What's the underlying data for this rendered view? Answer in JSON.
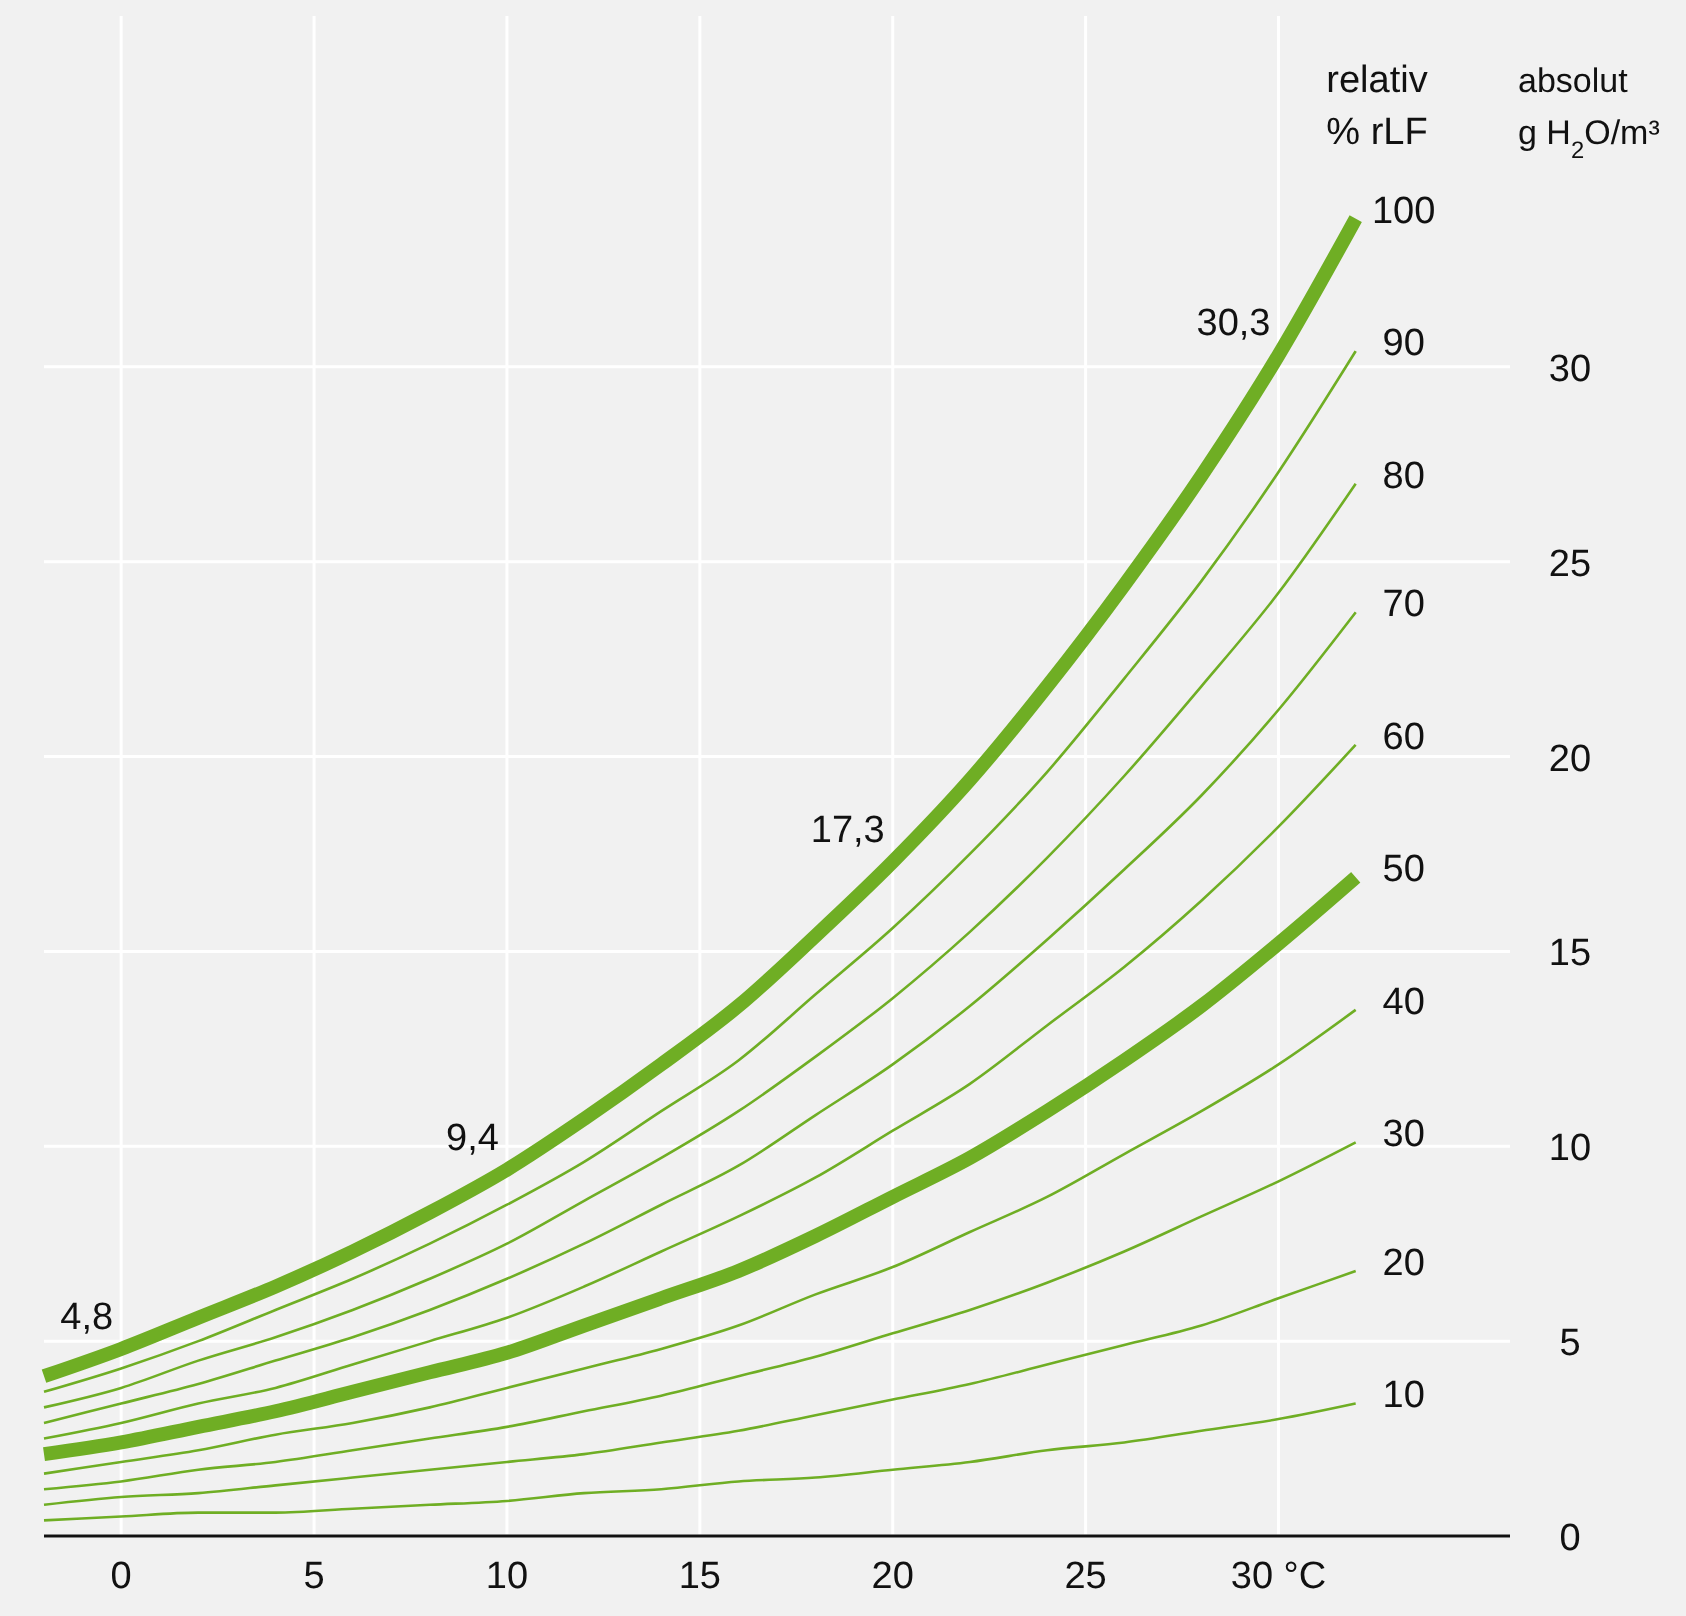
{
  "chart_data": {
    "type": "line",
    "ylabel": "absolut\ng H$_{2}$O/m³",
    "annotations": [
      "relativ\n% rLF",
      {
        "text": "4,8",
        "x": 0,
        "y": 4.8
      },
      {
        "text": "9,4",
        "x": 10,
        "y": 9.4
      },
      {
        "text": "17,3",
        "x": 20,
        "y": 17.3
      },
      {
        "text": "30,3",
        "x": 30,
        "y": 30.3
      }
    ],
    "x": [
      -2,
      0,
      2,
      4,
      6,
      8,
      10,
      12,
      14,
      16,
      18,
      20,
      22,
      24,
      26,
      28,
      30,
      32
    ],
    "series": [
      {
        "name": "100",
        "color": "#6fae24",
        "values": [
          4.1,
          4.8,
          5.6,
          6.4,
          7.3,
          8.3,
          9.4,
          10.7,
          12.1,
          13.6,
          15.4,
          17.3,
          19.4,
          21.8,
          24.4,
          27.2,
          30.3,
          33.8
        ]
      },
      {
        "name": "90",
        "color": "#6fae24",
        "values": [
          3.7,
          4.3,
          5.0,
          5.8,
          6.6,
          7.5,
          8.5,
          9.6,
          10.9,
          12.2,
          13.9,
          15.6,
          17.5,
          19.6,
          22.0,
          24.5,
          27.3,
          30.4
        ]
      },
      {
        "name": "80",
        "color": "#6fae24",
        "values": [
          3.3,
          3.8,
          4.5,
          5.1,
          5.8,
          6.6,
          7.5,
          8.6,
          9.7,
          10.9,
          12.3,
          13.8,
          15.5,
          17.4,
          19.5,
          21.8,
          24.2,
          27.0
        ]
      },
      {
        "name": "70",
        "color": "#6fae24",
        "values": [
          2.9,
          3.4,
          3.9,
          4.5,
          5.1,
          5.8,
          6.6,
          7.5,
          8.5,
          9.5,
          10.8,
          12.1,
          13.6,
          15.3,
          17.1,
          19.0,
          21.2,
          23.7
        ]
      },
      {
        "name": "60",
        "color": "#6fae24",
        "values": [
          2.5,
          2.9,
          3.4,
          3.8,
          4.4,
          5.0,
          5.6,
          6.4,
          7.3,
          8.2,
          9.2,
          10.4,
          11.6,
          13.1,
          14.6,
          16.3,
          18.2,
          20.3
        ]
      },
      {
        "name": "50",
        "color": "#6fae24",
        "values": [
          2.1,
          2.4,
          2.8,
          3.2,
          3.7,
          4.2,
          4.7,
          5.4,
          6.1,
          6.8,
          7.7,
          8.7,
          9.7,
          10.9,
          12.2,
          13.6,
          15.2,
          16.9
        ]
      },
      {
        "name": "40",
        "color": "#6fae24",
        "values": [
          1.6,
          1.9,
          2.2,
          2.6,
          2.9,
          3.3,
          3.8,
          4.3,
          4.8,
          5.4,
          6.2,
          6.9,
          7.8,
          8.7,
          9.8,
          10.9,
          12.1,
          13.5
        ]
      },
      {
        "name": "30",
        "color": "#6fae24",
        "values": [
          1.2,
          1.4,
          1.7,
          1.9,
          2.2,
          2.5,
          2.8,
          3.2,
          3.6,
          4.1,
          4.6,
          5.2,
          5.8,
          6.5,
          7.3,
          8.2,
          9.1,
          10.1
        ]
      },
      {
        "name": "20",
        "color": "#6fae24",
        "values": [
          0.8,
          1.0,
          1.1,
          1.3,
          1.5,
          1.7,
          1.9,
          2.1,
          2.4,
          2.7,
          3.1,
          3.5,
          3.9,
          4.4,
          4.9,
          5.4,
          6.1,
          6.8
        ]
      },
      {
        "name": "10",
        "color": "#6fae24",
        "values": [
          0.4,
          0.5,
          0.6,
          0.6,
          0.7,
          0.8,
          0.9,
          1.1,
          1.2,
          1.4,
          1.5,
          1.7,
          1.9,
          2.2,
          2.4,
          2.7,
          3.0,
          3.4
        ]
      }
    ],
    "xlim": [
      -2,
      36
    ],
    "ylim": [
      0,
      39
    ],
    "xticks": [
      0,
      5,
      10,
      15,
      20,
      25,
      {
        "value": 30,
        "label": "30 °C"
      }
    ],
    "yticks": [
      0,
      5,
      10,
      15,
      20,
      25,
      30
    ],
    "grid": true,
    "marker": "none",
    "line_style": "solid"
  }
}
